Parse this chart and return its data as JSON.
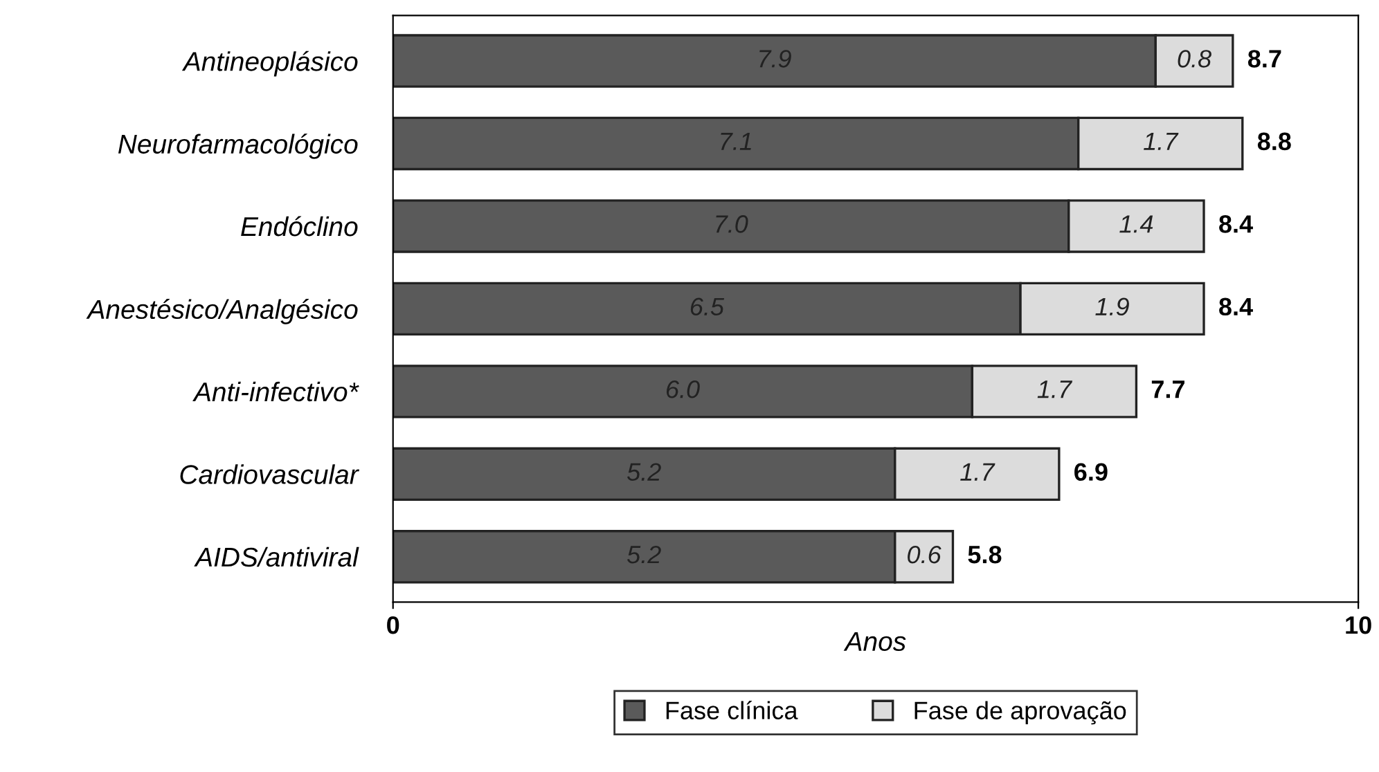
{
  "chart_data": {
    "type": "bar",
    "orientation": "horizontal",
    "stacked": true,
    "xlabel": "Anos",
    "categories": [
      "Antineoplásico",
      "Neurofarmacológico",
      "Endóclino",
      "Anestésico/Analgésico",
      "Anti-infectivo*",
      "Cardiovascular",
      "AIDS/antiviral"
    ],
    "series": [
      {
        "name": "Fase clínica",
        "color": "#5a5a5a",
        "values": [
          7.9,
          7.1,
          7.0,
          6.5,
          6.0,
          5.2,
          5.2
        ],
        "value_labels": [
          "7.9",
          "7.1",
          "7.0",
          "6.5",
          "6.0",
          "5.2",
          "5.2"
        ]
      },
      {
        "name": "Fase de aprovação",
        "color": "#dcdcdc",
        "values": [
          0.8,
          1.7,
          1.4,
          1.9,
          1.7,
          1.7,
          0.6
        ],
        "value_labels": [
          "0.8",
          "1.7",
          "1.4",
          "1.9",
          "1.7",
          "1.7",
          "0.6"
        ]
      }
    ],
    "totals": [
      "8.7",
      "8.8",
      "8.4",
      "8.4",
      "7.7",
      "6.9",
      "5.8"
    ],
    "xlim": [
      0,
      10
    ],
    "xticks": [
      0,
      10
    ],
    "grid": false,
    "legend": "bottom"
  }
}
